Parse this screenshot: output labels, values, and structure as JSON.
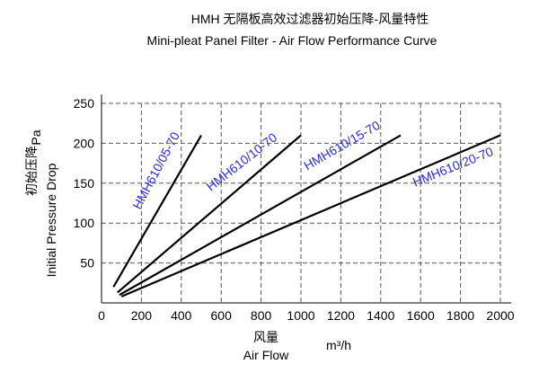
{
  "chart_data": {
    "type": "line",
    "title": "HMH    无隔板高效过滤器初始压降-风量特性",
    "subtitle": "Mini-pleat  Panel Filter - Air Flow Performance Curve",
    "xlabel_cn": "风量",
    "xlabel": "Air Flow",
    "xunit": "m³/h",
    "ylabel_cn": "初始压降",
    "ylabel": "Initial Pressure Drop",
    "yunit": "Pa",
    "xlim": [
      0,
      2000
    ],
    "ylim": [
      0,
      250
    ],
    "xticks": [
      "0",
      "200",
      "400",
      "600",
      "800",
      "1000",
      "1200",
      "1400",
      "1600",
      "1800",
      "2000"
    ],
    "yticks": [
      "50",
      "100",
      "150",
      "200",
      "250"
    ],
    "grid": true,
    "grid_style": "dashed",
    "line_color": "#000000",
    "label_color": "#2b2bd6",
    "series": [
      {
        "name": "HMH610/05-70",
        "x": [
          60,
          500
        ],
        "y": [
          20,
          210
        ]
      },
      {
        "name": "HMH610/10-70",
        "x": [
          80,
          1000
        ],
        "y": [
          13,
          210
        ]
      },
      {
        "name": "HMH610/15-70",
        "x": [
          90,
          1500
        ],
        "y": [
          10,
          210
        ]
      },
      {
        "name": "HMH610/20-70",
        "x": [
          100,
          2000
        ],
        "y": [
          8,
          210
        ]
      }
    ]
  }
}
